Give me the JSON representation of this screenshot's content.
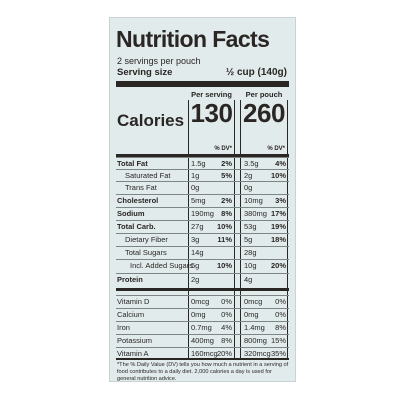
{
  "label": {
    "title": "Nutrition Facts",
    "servings": "2 servings per pouch",
    "serving_size_label": "Serving size",
    "serving_size_value": "½ cup (140g)",
    "col1_header": "Per serving",
    "col2_header": "Per pouch",
    "calories_label": "Calories",
    "calories_per_serving": "130",
    "calories_per_pouch": "260",
    "dv_header": "% DV*",
    "nutrients": [
      {
        "name": "Total Fat",
        "bold": true,
        "indent": 0,
        "amt1": "1.5g",
        "pct1": "2%",
        "amt2": "3.5g",
        "pct2": "4%"
      },
      {
        "name": "Saturated Fat",
        "bold": false,
        "indent": 1,
        "amt1": "1g",
        "pct1": "5%",
        "amt2": "2g",
        "pct2": "10%"
      },
      {
        "name": "Trans Fat",
        "bold": false,
        "indent": 1,
        "amt1": "0g",
        "pct1": "",
        "amt2": "0g",
        "pct2": ""
      },
      {
        "name": "Cholesterol",
        "bold": true,
        "indent": 0,
        "amt1": "5mg",
        "pct1": "2%",
        "amt2": "10mg",
        "pct2": "3%"
      },
      {
        "name": "Sodium",
        "bold": true,
        "indent": 0,
        "amt1": "190mg",
        "pct1": "8%",
        "amt2": "380mg",
        "pct2": "17%"
      },
      {
        "name": "Total Carb.",
        "bold": true,
        "indent": 0,
        "amt1": "27g",
        "pct1": "10%",
        "amt2": "53g",
        "pct2": "19%"
      },
      {
        "name": "Dietary Fiber",
        "bold": false,
        "indent": 1,
        "amt1": "3g",
        "pct1": "11%",
        "amt2": "5g",
        "pct2": "18%"
      },
      {
        "name": "Total Sugars",
        "bold": false,
        "indent": 1,
        "amt1": "14g",
        "pct1": "",
        "amt2": "28g",
        "pct2": ""
      },
      {
        "name": "Incl. Added Sugars",
        "bold": false,
        "indent": 2,
        "amt1": "5g",
        "pct1": "10%",
        "amt2": "10g",
        "pct2": "20%"
      },
      {
        "name": "Protein",
        "bold": true,
        "indent": 0,
        "amt1": "2g",
        "pct1": "",
        "amt2": "4g",
        "pct2": ""
      }
    ],
    "vitamins": [
      {
        "name": "Vitamin D",
        "amt1": "0mcg",
        "pct1": "0%",
        "amt2": "0mcg",
        "pct2": "0%"
      },
      {
        "name": "Calcium",
        "amt1": "0mg",
        "pct1": "0%",
        "amt2": "0mg",
        "pct2": "0%"
      },
      {
        "name": "Iron",
        "amt1": "0.7mg",
        "pct1": "4%",
        "amt2": "1.4mg",
        "pct2": "8%"
      },
      {
        "name": "Potassium",
        "amt1": "400mg",
        "pct1": "8%",
        "amt2": "800mg",
        "pct2": "15%"
      },
      {
        "name": "Vitamin A",
        "amt1": "160mcg",
        "pct1": "20%",
        "amt2": "320mcg",
        "pct2": "35%"
      }
    ],
    "footnote": "*The % Daily Value (DV) tells you how much a nutrient in a serving of food contributes to a daily diet. 2,000 calories a day is used for general nutrition advice."
  }
}
